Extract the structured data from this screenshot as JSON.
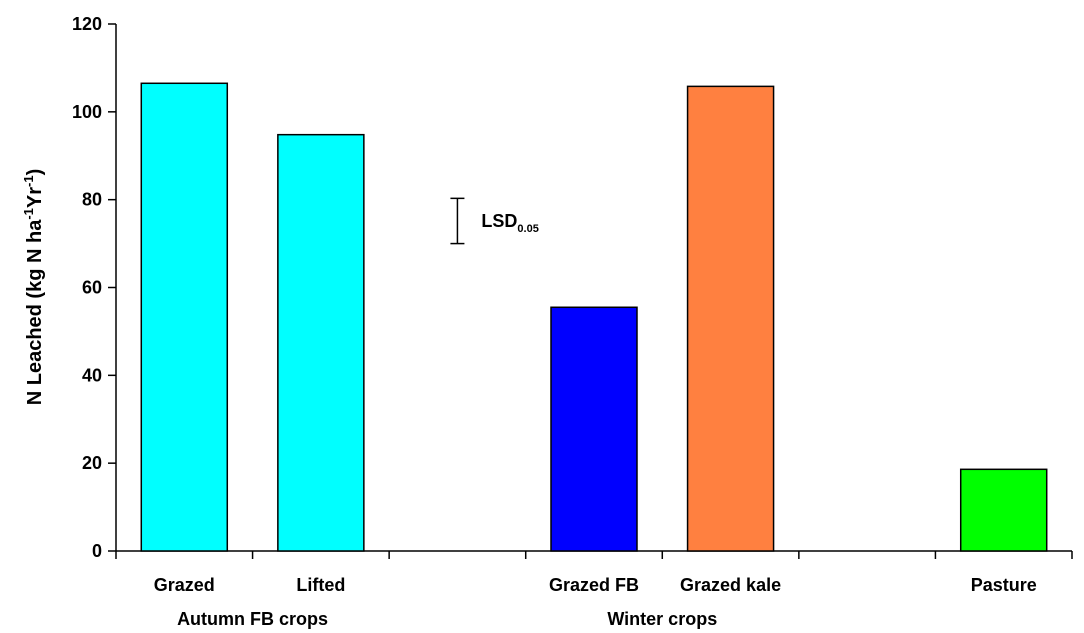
{
  "chart_data": {
    "type": "bar",
    "ylabel": "N Leached (kg N ha",
    "ylabel_parts": {
      "base": "N Leached (kg N ha",
      "sup1": "-1",
      "mid": "Yr",
      "sup2": "-1",
      "end": ")"
    },
    "ylim": [
      0,
      120
    ],
    "yticks": [
      "0",
      "20",
      "40",
      "60",
      "80",
      "100",
      "120"
    ],
    "grid": false,
    "slots": 7,
    "bars": [
      {
        "category": "Grazed",
        "slot": 0,
        "value": 106.5,
        "color": "#00ffff"
      },
      {
        "category": "Lifted",
        "slot": 1,
        "value": 94.8,
        "color": "#00ffff"
      },
      {
        "category": "Grazed FB",
        "slot": 3,
        "value": 55.5,
        "color": "#0000ff"
      },
      {
        "category": "Grazed kale",
        "slot": 4,
        "value": 105.8,
        "color": "#ff8040"
      },
      {
        "category": "Pasture",
        "slot": 6,
        "value": 18.6,
        "color": "#00ff00"
      }
    ],
    "groups": [
      {
        "label": "Autumn FB crops",
        "from_slot": 0,
        "to_slot": 1
      },
      {
        "label": "Winter crops",
        "from_slot": 3,
        "to_slot": 4
      }
    ],
    "lsd": {
      "label": "LSD",
      "subscript": "0.05",
      "low": 70,
      "high": 80.3,
      "slot_position": 2.5
    }
  }
}
